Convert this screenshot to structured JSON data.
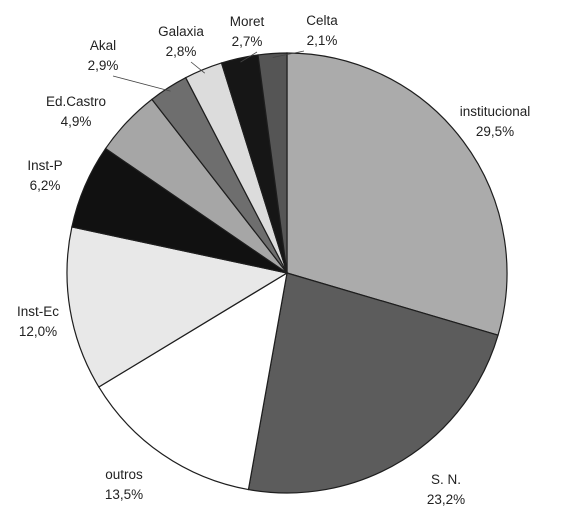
{
  "chart_data": {
    "type": "pie",
    "title": "",
    "slices": [
      {
        "label": "institucional",
        "value_label": "29,5%",
        "value": 29.5,
        "color": "#ababab"
      },
      {
        "label": "S. N.",
        "value_label": "23,2%",
        "value": 23.2,
        "color": "#5c5c5c"
      },
      {
        "label": "outros",
        "value_label": "13,5%",
        "value": 13.5,
        "color": "#ffffff"
      },
      {
        "label": "Inst-Ec",
        "value_label": "12,0%",
        "value": 12.0,
        "color": "#e8e8e8"
      },
      {
        "label": "Inst-P",
        "value_label": "6,2%",
        "value": 6.2,
        "color": "#111111"
      },
      {
        "label": "Ed.Castro",
        "value_label": "4,9%",
        "value": 4.9,
        "color": "#a6a6a6"
      },
      {
        "label": "Akal",
        "value_label": "2,9%",
        "value": 2.9,
        "color": "#6e6e6e"
      },
      {
        "label": "Galaxia",
        "value_label": "2,8%",
        "value": 2.8,
        "color": "#dcdcdc"
      },
      {
        "label": "Moret",
        "value_label": "2,7%",
        "value": 2.7,
        "color": "#161616"
      },
      {
        "label": "Celta",
        "value_label": "2,1%",
        "value": 2.1,
        "color": "#555555"
      }
    ]
  }
}
